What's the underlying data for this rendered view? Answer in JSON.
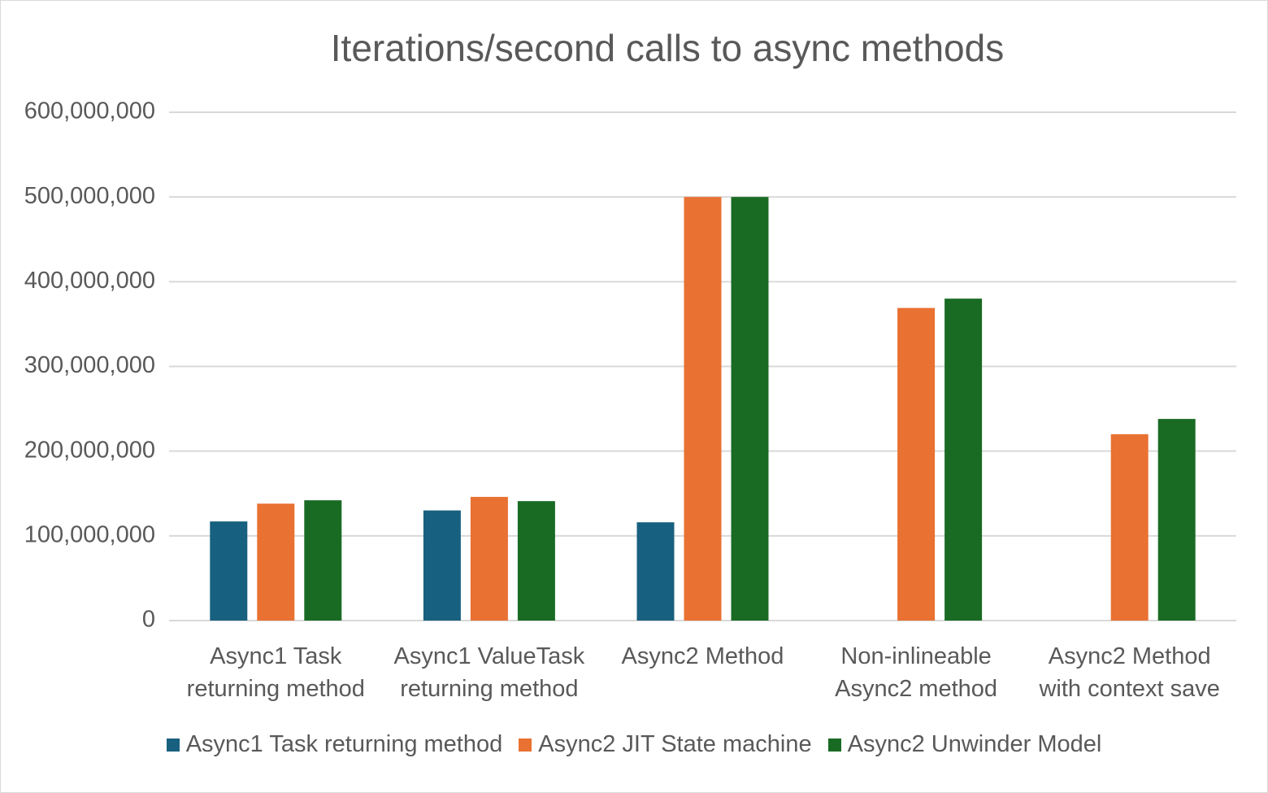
{
  "chart_data": {
    "type": "bar",
    "title": "Iterations/second calls to async methods",
    "categories": [
      "Async1 Task returning method",
      "Async1 ValueTask returning method",
      "Async2 Method",
      "Non-inlineable Async2 method",
      "Async2 Method with context save"
    ],
    "series": [
      {
        "name": "Async1 Task returning method",
        "color": "#18607f",
        "values": [
          117000000,
          130000000,
          116000000,
          null,
          null
        ]
      },
      {
        "name": "Async2 JIT State machine",
        "color": "#e97132",
        "values": [
          138000000,
          146000000,
          500000000,
          369000000,
          220000000
        ]
      },
      {
        "name": "Async2 Unwinder Model",
        "color": "#196b24",
        "values": [
          142000000,
          141000000,
          500000000,
          380000000,
          238000000
        ]
      }
    ],
    "ylim": [
      0,
      600000000
    ],
    "yticks": [
      0,
      {
        "value": 100000000,
        "label": "100,000,000"
      },
      {
        "value": 200000000,
        "label": "200,000,000"
      },
      {
        "value": 300000000,
        "label": "300,000,000"
      },
      {
        "value": 400000000,
        "label": "400,000,000"
      },
      {
        "value": 500000000,
        "label": "500,000,000"
      },
      {
        "value": 600000000,
        "label": "600,000,000"
      }
    ],
    "grid": true,
    "legend": "bottom"
  }
}
